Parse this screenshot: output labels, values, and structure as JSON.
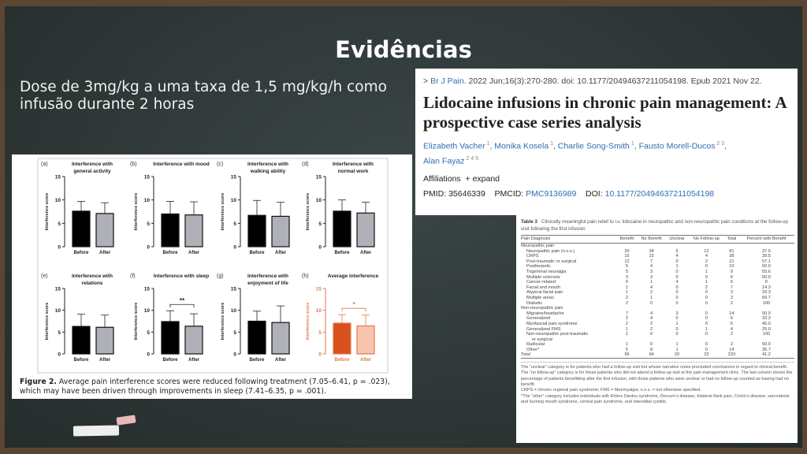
{
  "slide": {
    "title": "Evidências",
    "subtitle": "Dose de 3mg/kg a uma taxa de 1,5 mg/kg/h como infusão durante 2 horas"
  },
  "article": {
    "journal": "Br J Pain.",
    "citation": " 2022 Jun;16(3):270-280. doi: 10.1177/20494637211054198. Epub 2021 Nov 22.",
    "title": "Lidocaine infusions in chronic pain management: A prospective case series analysis",
    "authors": [
      {
        "name": "Elizabeth Vacher",
        "sup": "1"
      },
      {
        "name": "Monika Kosela",
        "sup": "1"
      },
      {
        "name": "Charlie Song-Smith",
        "sup": "1"
      },
      {
        "name": "Fausto Morell-Ducos",
        "sup": "2 3"
      },
      {
        "name": "Alan Fayaz",
        "sup": "2 4 5"
      }
    ],
    "affiliations": "Affiliations",
    "expand": "+ expand",
    "pmid_label": "PMID:",
    "pmid": "35646339",
    "pmcid_label": "PMCID:",
    "pmcid": "PMC9136989",
    "doi_label": "DOI:",
    "doi": "10.1177/20494637211054198"
  },
  "figure": {
    "caption_label": "Figure 2.",
    "caption": " Average pain interference scores were reduced following treatment (7.05–6.41, p = .023), which may have been driven through improvements in sleep (7.41–6.35, p = .001)."
  },
  "chart_data": [
    {
      "type": "bar",
      "letter": "(a)",
      "title": "Interference with general activity",
      "ylabel": "Interference score",
      "ylim": [
        0,
        15
      ],
      "yticks": [
        0,
        5,
        10,
        15
      ],
      "categories": [
        "Before",
        "After"
      ],
      "values": [
        7.6,
        7.1
      ],
      "error_upper": [
        9.7,
        9.4
      ],
      "sig": ""
    },
    {
      "type": "bar",
      "letter": "(b)",
      "title": "Interference with mood",
      "ylabel": "Interference score",
      "ylim": [
        0,
        15
      ],
      "yticks": [
        0,
        5,
        10,
        15
      ],
      "categories": [
        "Before",
        "After"
      ],
      "values": [
        7.0,
        6.8
      ],
      "error_upper": [
        9.7,
        9.6
      ],
      "sig": ""
    },
    {
      "type": "bar",
      "letter": "(c)",
      "title": "Interference with walking ability",
      "ylabel": "Interference score",
      "ylim": [
        0,
        15
      ],
      "yticks": [
        0,
        5,
        10,
        15
      ],
      "categories": [
        "Before",
        "After"
      ],
      "values": [
        6.7,
        6.5
      ],
      "error_upper": [
        9.9,
        9.5
      ],
      "sig": ""
    },
    {
      "type": "bar",
      "letter": "(d)",
      "title": "Interference with normal work",
      "ylabel": "Interference score",
      "ylim": [
        0,
        15
      ],
      "yticks": [
        0,
        5,
        10,
        15
      ],
      "categories": [
        "Before",
        "After"
      ],
      "values": [
        7.6,
        7.2
      ],
      "error_upper": [
        10.0,
        9.5
      ],
      "sig": ""
    },
    {
      "type": "bar",
      "letter": "(e)",
      "title": "Interference with relations",
      "ylabel": "Interference score",
      "ylim": [
        0,
        15
      ],
      "yticks": [
        0,
        5,
        10,
        15
      ],
      "categories": [
        "Before",
        "After"
      ],
      "values": [
        6.3,
        6.1
      ],
      "error_upper": [
        9.1,
        8.9
      ],
      "sig": ""
    },
    {
      "type": "bar",
      "letter": "(f)",
      "title": "Interference with sleep",
      "ylabel": "Interference score",
      "ylim": [
        0,
        15
      ],
      "yticks": [
        0,
        5,
        10,
        15
      ],
      "categories": [
        "Before",
        "After"
      ],
      "values": [
        7.41,
        6.35
      ],
      "error_upper": [
        9.9,
        9.2
      ],
      "sig": "**"
    },
    {
      "type": "bar",
      "letter": "(g)",
      "title": "Interference with enjoyment of life",
      "ylabel": "Interference score",
      "ylim": [
        0,
        15
      ],
      "yticks": [
        0,
        5,
        10,
        15
      ],
      "categories": [
        "Before",
        "After"
      ],
      "values": [
        7.5,
        7.2
      ],
      "error_upper": [
        9.8,
        11.0
      ],
      "sig": ""
    },
    {
      "type": "bar",
      "letter": "(h)",
      "title": "Average interference",
      "ylabel": "Interference score",
      "ylim": [
        0,
        15
      ],
      "yticks": [
        0,
        5,
        10,
        15
      ],
      "categories": [
        "Before",
        "After"
      ],
      "values": [
        7.05,
        6.41
      ],
      "error_upper": [
        9.0,
        8.9
      ],
      "sig": "*",
      "colors": [
        "#d9501e",
        "#f7c4ad"
      ],
      "accent": "#e07a4a"
    }
  ],
  "table": {
    "label": "Table 3",
    "caption": "Clinically meaningful pain relief to i.v. lidocaine in neuropathic and non-neuropathic pain conditions at the follow-up visit following the first infusion",
    "headers": [
      "Pain Diagnosis",
      "Benefit",
      "No Benefit",
      "Unclear",
      "No Follow-up",
      "Total",
      "Percent with Benefit"
    ],
    "rows": [
      {
        "group": "Neuropathic pain"
      },
      [
        "Neuropathic pain (n.o.s.)",
        "30",
        "34",
        "5",
        "12",
        "81",
        "37.0"
      ],
      [
        "CRPS",
        "15",
        "15",
        "4",
        "4",
        "38",
        "39.5"
      ],
      [
        "Post-traumatic or surgical",
        "12",
        "7",
        "0",
        "2",
        "21",
        "57.1"
      ],
      [
        "Postherpetic",
        "5",
        "4",
        "1",
        "0",
        "10",
        "50.0"
      ],
      [
        "Trigeminal neuralgia",
        "5",
        "3",
        "0",
        "1",
        "9",
        "55.6"
      ],
      [
        "Multiple sclerosis",
        "3",
        "3",
        "0",
        "0",
        "6",
        "50.0"
      ],
      [
        "Cancer-related",
        "0",
        "1",
        "4",
        "1",
        "6",
        "0"
      ],
      [
        "Facial and mouth",
        "1",
        "4",
        "0",
        "2",
        "7",
        "14.3"
      ],
      [
        "Atypical facial pain",
        "1",
        "2",
        "0",
        "0",
        "3",
        "33.3"
      ],
      [
        "Multiple areas",
        "2",
        "1",
        "0",
        "0",
        "3",
        "66.7"
      ],
      [
        "Diabetic",
        "2",
        "0",
        "0",
        "0",
        "2",
        "100"
      ],
      {
        "group": "Non-neuropathic pain"
      },
      [
        "Migraine/headache",
        "7",
        "4",
        "3",
        "0",
        "14",
        "50.0"
      ],
      [
        "Generalized",
        "2",
        "4",
        "0",
        "0",
        "6",
        "33.3"
      ],
      [
        "Myofascial pain syndrome",
        "2",
        "2",
        "1",
        "0",
        "5",
        "40.0"
      ],
      [
        "Generalized FMS",
        "1",
        "2",
        "0",
        "1",
        "4",
        "25.0"
      ],
      [
        "Non-neuropathic post-traumatic",
        "2",
        "0",
        "0",
        "0",
        "2",
        "100"
      ],
      {
        "cont": "or surgical"
      },
      [
        "Radicular",
        "1",
        "0",
        "1",
        "0",
        "2",
        "50.0"
      ],
      [
        "Other*",
        "5",
        "8",
        "1",
        "0",
        "14",
        "35.7"
      ]
    ],
    "total": [
      "Total",
      "96",
      "94",
      "20",
      "23",
      "233",
      "41.2"
    ],
    "footnotes": [
      "The “unclear” category is for patients who had a follow-up visit but whose narrative notes precluded conclusions in regard to clinical benefit. The “no follow-up” category is for those patients who did not attend a follow-up visit at the pain management clinic. The last column shows the percentage of patients benefitting after the first infusion, with those patients who were unclear or had no follow-up counted as having had no benefit.",
      "CRPS = chronic regional pain syndrome; FMS = fibromyalgia; n.o.s. = not otherwise specified.",
      "*The “other” category includes individuals with Ehlers Danlos syndrome, Dercum’s disease, bilateral flank pain, Crohn’s disease, sarcoidosis and burning mouth syndrome, central pain syndrome, and interstitial cystitis."
    ]
  }
}
